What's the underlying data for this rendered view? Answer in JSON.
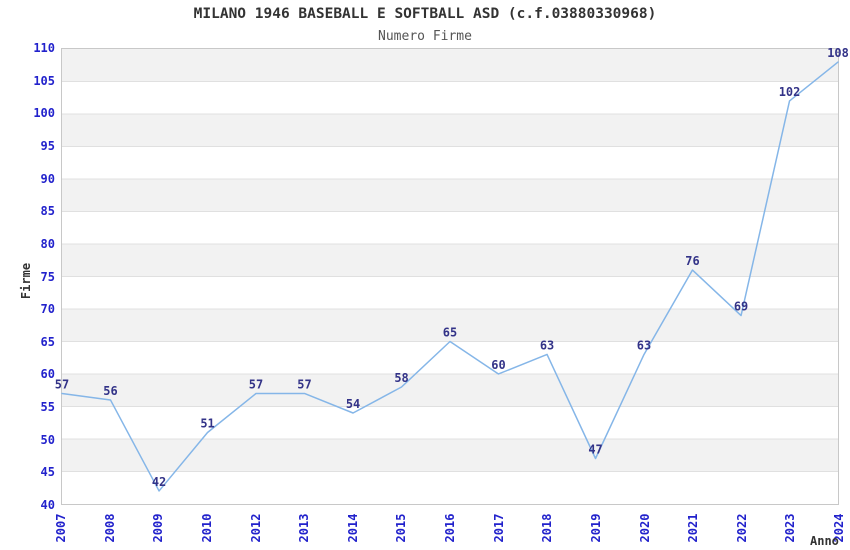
{
  "chart_data": {
    "type": "line",
    "title": "MILANO 1946 BASEBALL E SOFTBALL ASD (c.f.03880330968)",
    "subtitle": "Numero Firme",
    "xlabel": "Anno",
    "ylabel": "Firme",
    "categories": [
      "2007",
      "2008",
      "2009",
      "2010",
      "2012",
      "2013",
      "2014",
      "2015",
      "2016",
      "2017",
      "2018",
      "2019",
      "2020",
      "2021",
      "2022",
      "2023",
      "2024"
    ],
    "series": [
      {
        "name": "Numero Firme",
        "values": [
          57,
          56,
          42,
          51,
          57,
          57,
          54,
          58,
          65,
          60,
          63,
          47,
          63,
          76,
          69,
          102,
          108
        ]
      }
    ],
    "ylim": [
      40,
      110
    ],
    "yticks": [
      40,
      45,
      50,
      55,
      60,
      65,
      70,
      75,
      80,
      85,
      90,
      95,
      100,
      105,
      110
    ],
    "grid": true,
    "legend": false,
    "band_fill": "alternating",
    "style": {
      "line_color": "#85b6e8",
      "point_label_color": "#333388",
      "tick_color": "#2222cc",
      "band_color": "#f2f2f2",
      "grid_color": "#e0e0e0",
      "border_color": "#c8c8c8",
      "text_color": "#333333",
      "subtitle_color": "#555555"
    }
  }
}
